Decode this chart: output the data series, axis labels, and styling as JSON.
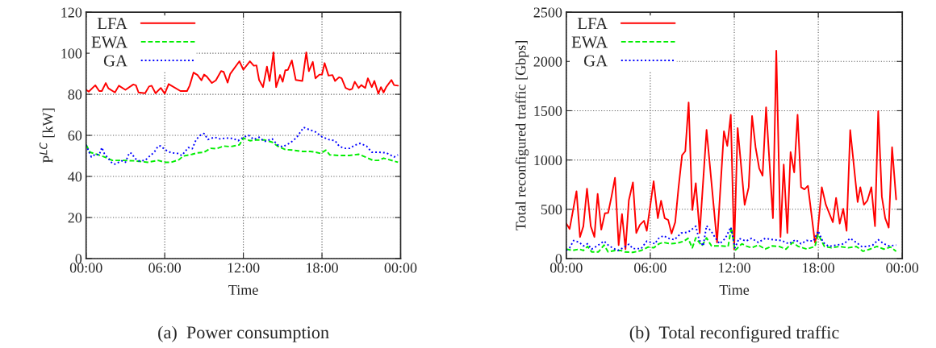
{
  "chart_data": [
    {
      "type": "line",
      "title": "(a)  Power consumption",
      "xlabel": "Time",
      "ylabel": "P$^{LC}$ [kW]",
      "xlim": [
        0,
        24
      ],
      "xticks": [
        {
          "value": 0,
          "label": "00:00"
        },
        {
          "value": 6,
          "label": "06:00"
        },
        {
          "value": 12,
          "label": "12:00"
        },
        {
          "value": 18,
          "label": "18:00"
        },
        {
          "value": 24,
          "label": "00:00"
        }
      ],
      "ylim": [
        0,
        120
      ],
      "yticks": [
        0,
        20,
        40,
        60,
        80,
        100,
        120
      ],
      "grid": true,
      "legend": "top left",
      "series": [
        {
          "name": "LFA",
          "color": "#ff0000",
          "line_style": "solid",
          "x": [
            0.0,
            0.2,
            0.7,
            1.0,
            1.2,
            1.5,
            1.7,
            2.2,
            2.5,
            3.0,
            3.6,
            3.8,
            4.0,
            4.5,
            4.8,
            5.0,
            5.3,
            5.7,
            6.0,
            6.3,
            7.2,
            7.7,
            7.9,
            8.2,
            8.5,
            8.8,
            9.0,
            9.2,
            9.6,
            9.9,
            10.3,
            10.5,
            10.8,
            11.0,
            11.7,
            12.0,
            12.5,
            12.8,
            13.0,
            13.2,
            13.5,
            13.8,
            14.0,
            14.3,
            14.5,
            14.8,
            15.0,
            15.2,
            15.4,
            15.7,
            16.0,
            16.5,
            16.8,
            17.0,
            17.3,
            17.5,
            17.8,
            18.0,
            18.2,
            18.5,
            18.8,
            19.0,
            19.3,
            19.5,
            19.8,
            20.1,
            20.3,
            20.5,
            20.8,
            21.0,
            21.3,
            21.5,
            21.8,
            22.0,
            22.3,
            22.5,
            22.7,
            22.9,
            23.3,
            23.5,
            23.8
          ],
          "values": [
            82.2,
            81.3,
            84.4,
            81.6,
            81.6,
            85.5,
            82.9,
            80.9,
            84.2,
            82.2,
            84.8,
            84.4,
            80.9,
            80.5,
            83.8,
            84.2,
            80.5,
            83.1,
            80.3,
            85,
            81.6,
            81.6,
            84.2,
            90.6,
            89.4,
            86.8,
            89.6,
            88.7,
            85.5,
            86.8,
            91.3,
            90.9,
            85.7,
            90,
            96.1,
            92,
            96.1,
            93.9,
            94.1,
            87,
            83.5,
            93.5,
            86.5,
            100.4,
            83.5,
            89.4,
            86.1,
            91.7,
            91.9,
            96.5,
            87,
            86.5,
            100.4,
            91.3,
            95.8,
            87.8,
            89.6,
            89.6,
            95.2,
            89.1,
            89.4,
            86.5,
            88.3,
            87.8,
            83.1,
            82.2,
            82.6,
            86.1,
            83.1,
            84.5,
            83.1,
            87.8,
            83.5,
            86.5,
            80.3,
            83.5,
            80.9,
            83.5,
            87,
            84.5,
            84.2
          ]
        },
        {
          "name": "EWA",
          "color": "#00ee00",
          "line_style": "dashed",
          "x": [
            0.0,
            0.3,
            0.8,
            1.4,
            2.0,
            2.9,
            3.7,
            4.7,
            5.5,
            6.0,
            6.5,
            7.1,
            7.4,
            8.1,
            8.5,
            9.0,
            9.5,
            9.96,
            10.5,
            11.0,
            11.7,
            12.0,
            12.5,
            13.0,
            13.6,
            14.2,
            14.6,
            15.2,
            15.8,
            16.5,
            17.1,
            17.5,
            17.9,
            18.3,
            18.6,
            19.3,
            20.1,
            20.8,
            21.3,
            21.9,
            22.3,
            22.7,
            23.1,
            23.8
          ],
          "values": [
            55.4,
            51.8,
            50.8,
            49.5,
            47.8,
            47.8,
            47.6,
            46.9,
            47.8,
            46.9,
            46.9,
            48.2,
            49.9,
            50.8,
            51.5,
            51.8,
            53.7,
            53.5,
            54.8,
            54.5,
            55.4,
            58.7,
            57.4,
            57.8,
            57.8,
            56.7,
            54.8,
            53.1,
            52.8,
            52.2,
            52.2,
            51.8,
            51.2,
            52.8,
            50.5,
            50.2,
            50.2,
            50.8,
            49.5,
            47.8,
            47.8,
            48.9,
            48.2,
            46.9
          ]
        },
        {
          "name": "GA",
          "color": "#0000ff",
          "line_style": "dotted",
          "x": [
            0.0,
            0.2,
            0.4,
            0.7,
            1.0,
            1.2,
            1.4,
            1.6,
            2.0,
            2.2,
            2.7,
            3.0,
            3.3,
            3.5,
            3.7,
            4.0,
            4.5,
            4.9,
            5.2,
            5.5,
            5.7,
            6.0,
            6.5,
            7.0,
            7.3,
            7.8,
            8.1,
            8.4,
            8.7,
            9.0,
            9.3,
            9.8,
            10.2,
            10.7,
            11.2,
            11.6,
            12.0,
            12.4,
            12.8,
            13.2,
            13.6,
            14.2,
            14.6,
            15.0,
            15.5,
            15.8,
            16.1,
            16.6,
            17.1,
            17.5,
            18.0,
            18.5,
            19.0,
            19.3,
            19.7,
            20.1,
            20.5,
            20.9,
            21.4,
            21.8,
            22.3,
            22.9,
            23.5,
            23.8
          ],
          "values": [
            55.4,
            52.2,
            49.5,
            50.8,
            50.5,
            54.1,
            51.0,
            49.5,
            46.3,
            46.0,
            47.6,
            46.9,
            51.5,
            51.2,
            48.9,
            47.6,
            47.8,
            50.2,
            51.8,
            54.8,
            54.8,
            53.1,
            51.5,
            51.2,
            50.2,
            54.1,
            53.5,
            58,
            60,
            60.9,
            58,
            59.1,
            58.3,
            58.7,
            58.5,
            57.4,
            59.1,
            60,
            58,
            59.1,
            57,
            58.3,
            55.4,
            54.4,
            56.1,
            57.4,
            59.3,
            63.9,
            62.6,
            61.7,
            59.3,
            58,
            57.4,
            54.8,
            53.7,
            53.7,
            55.2,
            56.1,
            54.8,
            51.8,
            51.8,
            51.5,
            49.5,
            50.5
          ]
        }
      ]
    },
    {
      "type": "line",
      "title": "(b)  Total reconfigured traffic",
      "xlabel": "Time",
      "ylabel": "Total reconfigured traffic [Gbps]",
      "xlim": [
        0,
        24
      ],
      "xticks": [
        {
          "value": 0,
          "label": "00:00"
        },
        {
          "value": 6,
          "label": "06:00"
        },
        {
          "value": 12,
          "label": "12:00"
        },
        {
          "value": 18,
          "label": "18:00"
        },
        {
          "value": 24,
          "label": "00:00"
        }
      ],
      "ylim": [
        0,
        2500
      ],
      "yticks": [
        0,
        500,
        1000,
        1500,
        2000,
        2500
      ],
      "grid": true,
      "legend": "top left",
      "series": [
        {
          "name": "LFA",
          "color": "#ff0000",
          "line_style": "solid",
          "x": [
            0.0,
            0.24,
            0.73,
            0.98,
            1.22,
            1.48,
            1.75,
            2.01,
            2.24,
            2.5,
            2.76,
            2.99,
            3.23,
            3.48,
            3.74,
            3.98,
            4.23,
            4.47,
            4.76,
            5.0,
            5.26,
            5.55,
            5.75,
            5.98,
            6.24,
            6.54,
            6.77,
            7.03,
            7.28,
            7.52,
            7.78,
            8.01,
            8.27,
            8.5,
            8.74,
            9.0,
            9.25,
            9.53,
            10.02,
            10.77,
            11.26,
            11.5,
            11.75,
            11.99,
            12.24,
            12.74,
            13.03,
            13.27,
            13.52,
            13.78,
            14.02,
            14.27,
            14.76,
            15.0,
            15.3,
            15.53,
            15.79,
            16.02,
            16.28,
            16.52,
            16.77,
            17.01,
            17.26,
            17.76,
            17.95,
            18.25,
            18.54,
            19.04,
            19.27,
            19.53,
            19.78,
            20.02,
            20.28,
            20.81,
            21.0,
            21.26,
            21.5,
            21.79,
            22.05,
            22.28,
            22.54,
            22.78,
            23.03,
            23.27,
            23.56
          ],
          "values": [
            355,
            301,
            683,
            219,
            328,
            710,
            328,
            219,
            656,
            293,
            459,
            464,
            628,
            819,
            137,
            451,
            96,
            593,
            773,
            260,
            342,
            383,
            282,
            519,
            784,
            410,
            587,
            410,
            391,
            254,
            369,
            710,
            1049,
            1089,
            1584,
            492,
            765,
            260,
            1305,
            164,
            1292,
            1143,
            1459,
            96,
            1324,
            546,
            724,
            1446,
            1130,
            915,
            841,
            1535,
            410,
            2108,
            219,
            954,
            260,
            1081,
            874,
            1459,
            724,
            702,
            738,
            164,
            260,
            724,
            546,
            369,
            615,
            355,
            505,
            282,
            1303,
            574,
            724,
            546,
            587,
            724,
            329,
            1495,
            628,
            410,
            314,
            1130,
            601
          ]
        },
        {
          "name": "EWA",
          "color": "#00ee00",
          "line_style": "dashed",
          "x": [
            0.0,
            0.43,
            0.93,
            1.22,
            1.52,
            1.81,
            2.3,
            2.7,
            2.99,
            3.48,
            3.88,
            4.17,
            4.76,
            5.35,
            5.85,
            6.24,
            6.63,
            6.93,
            7.42,
            7.91,
            8.41,
            8.7,
            9.0,
            9.25,
            9.69,
            10.02,
            10.37,
            11.06,
            11.56,
            11.79,
            12.05,
            12.54,
            12.83,
            13.23,
            13.72,
            14.21,
            14.7,
            15.2,
            15.69,
            16.18,
            16.57,
            17.17,
            17.76,
            17.99,
            18.44,
            18.94,
            19.53,
            20.12,
            20.71,
            21.2,
            21.69,
            22.19,
            22.68,
            23.17,
            23.56
          ],
          "values": [
            96,
            82,
            96,
            82,
            123,
            68,
            68,
            137,
            68,
            82,
            82,
            68,
            63,
            82,
            117,
            109,
            150,
            164,
            150,
            156,
            177,
            205,
            109,
            210,
            128,
            210,
            128,
            128,
            123,
            314,
            82,
            150,
            128,
            109,
            137,
            96,
            128,
            123,
            96,
            164,
            123,
            96,
            123,
            246,
            123,
            109,
            123,
            109,
            123,
            74,
            96,
            123,
            96,
            117,
            74
          ]
        },
        {
          "name": "GA",
          "color": "#0000ff",
          "line_style": "dotted",
          "x": [
            0.0,
            0.24,
            0.53,
            0.93,
            1.22,
            1.52,
            1.81,
            2.2,
            2.7,
            2.99,
            3.29,
            3.68,
            4.07,
            4.47,
            4.76,
            5.35,
            5.75,
            6.04,
            6.34,
            6.54,
            6.93,
            7.32,
            7.72,
            8.21,
            8.7,
            9.0,
            9.25,
            9.49,
            9.78,
            10.02,
            10.37,
            10.67,
            10.96,
            11.36,
            11.75,
            12.05,
            12.34,
            12.83,
            13.23,
            13.72,
            14.21,
            14.8,
            15.39,
            15.89,
            16.38,
            16.77,
            17.17,
            17.66,
            17.99,
            18.35,
            18.74,
            19.33,
            19.82,
            20.28,
            20.71,
            21.1,
            21.5,
            21.89,
            22.28,
            22.68,
            23.07,
            23.56
          ],
          "values": [
            82,
            109,
            183,
            164,
            128,
            150,
            96,
            128,
            177,
            137,
            109,
            82,
            109,
            145,
            101,
            101,
            177,
            164,
            150,
            199,
            232,
            205,
            191,
            259,
            268,
            300,
            328,
            191,
            128,
            333,
            273,
            205,
            150,
            205,
            319,
            109,
            205,
            177,
            205,
            164,
            205,
            191,
            183,
            150,
            191,
            150,
            183,
            177,
            281,
            164,
            123,
            137,
            150,
            205,
            164,
            123,
            123,
            137,
            191,
            150,
            128,
            137
          ]
        }
      ]
    }
  ]
}
